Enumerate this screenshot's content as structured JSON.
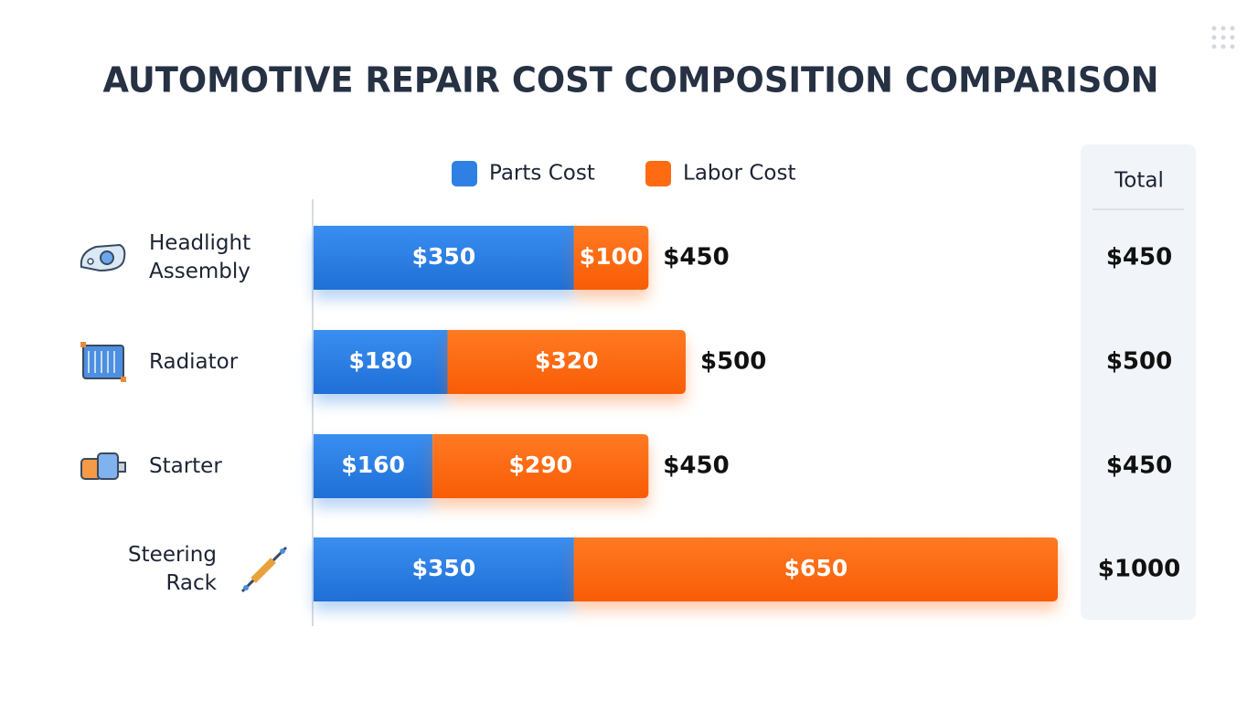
{
  "chart_data": {
    "type": "stacked-bar-horizontal",
    "title": "AUTOMOTIVE REPAIR COST COMPOSITION COMPARISON",
    "categories": [
      "Headlight Assembly",
      "Radiator",
      "Starter",
      "Steering Rack"
    ],
    "series": [
      {
        "name": "Parts Cost",
        "color": "#2f80e4",
        "values": [
          350,
          180,
          160,
          350
        ],
        "value_labels": [
          "$350",
          "$180",
          "$160",
          "$350"
        ]
      },
      {
        "name": "Labor Cost",
        "color": "#ff6b12",
        "values": [
          100,
          320,
          290,
          650
        ],
        "value_labels": [
          "$100",
          "$320",
          "$290",
          "$650"
        ]
      }
    ],
    "totals_header": "Total",
    "totals": [
      450,
      500,
      450,
      1000
    ],
    "total_labels": [
      "$450",
      "$500",
      "$450",
      "$1000"
    ],
    "xlim": [
      0,
      1000
    ]
  }
}
